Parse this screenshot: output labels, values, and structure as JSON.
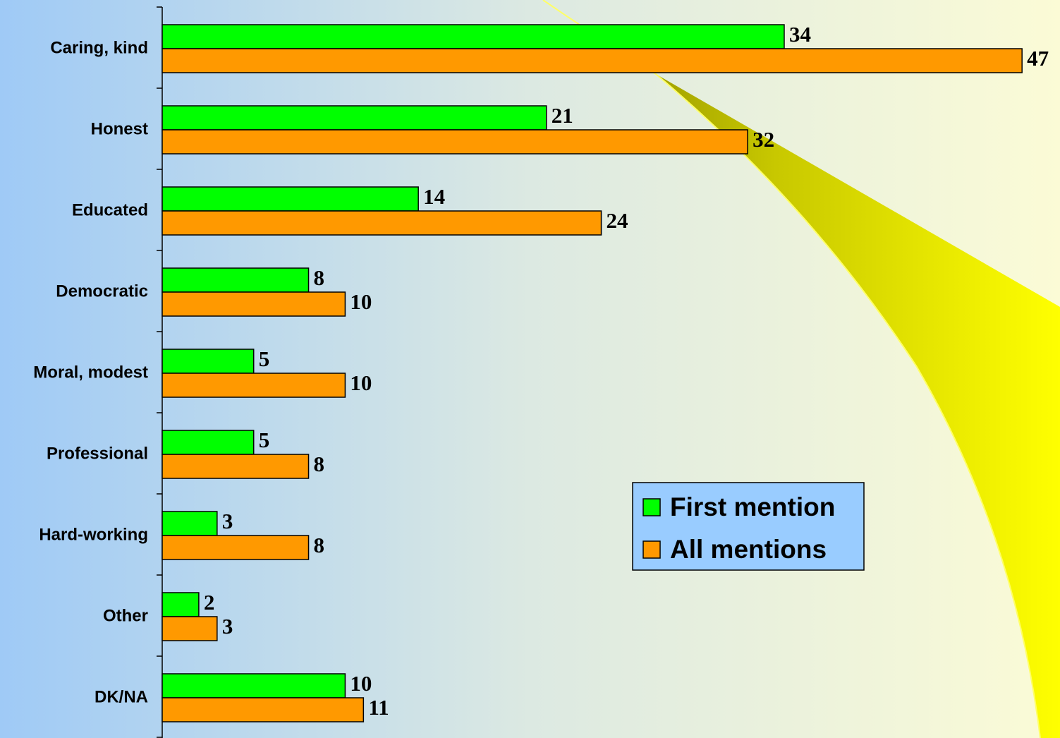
{
  "chart_data": {
    "type": "bar",
    "orientation": "horizontal",
    "categories": [
      "Caring, kind",
      "Honest",
      "Educated",
      "Democratic",
      "Moral, modest",
      "Professional",
      "Hard-working",
      "Other",
      "DK/NA"
    ],
    "series": [
      {
        "name": "First mention",
        "color": "#00ff00",
        "values": [
          34,
          21,
          14,
          8,
          5,
          5,
          3,
          2,
          10
        ]
      },
      {
        "name": "All mentions",
        "color": "#ff9900",
        "values": [
          47,
          32,
          24,
          10,
          10,
          8,
          8,
          3,
          11
        ]
      }
    ]
  }
}
